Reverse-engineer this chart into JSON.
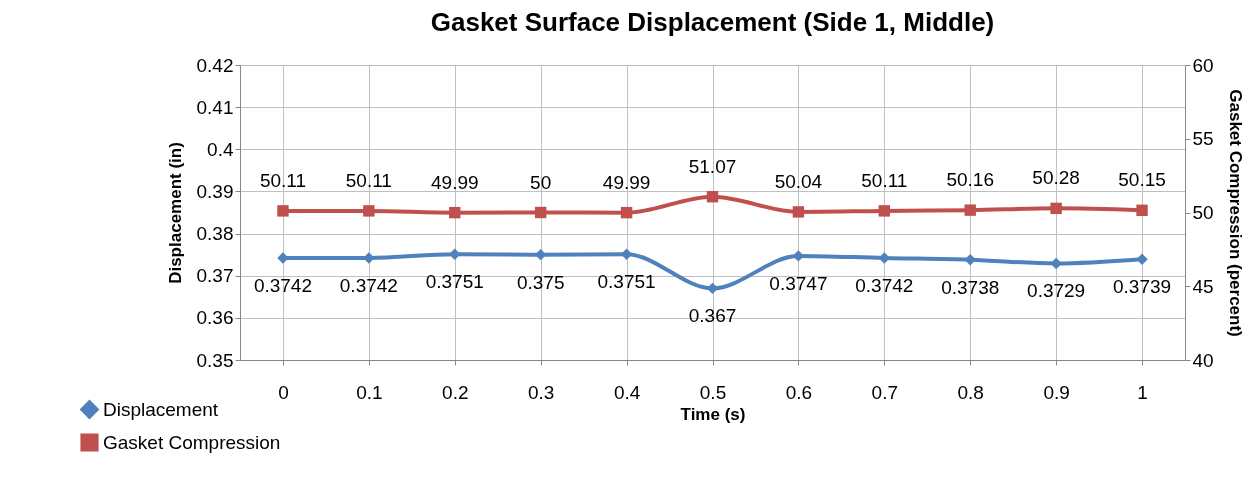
{
  "chart_data": {
    "type": "line",
    "title": "Gasket Surface Displacement (Side 1, Middle)",
    "xlabel": "Time (s)",
    "ylabel": "Displacement (in)",
    "y2label": "Gasket Compression (percent)",
    "categories": [
      "0",
      "0.1",
      "0.2",
      "0.3",
      "0.4",
      "0.5",
      "0.6",
      "0.7",
      "0.8",
      "0.9",
      "1"
    ],
    "series": [
      {
        "name": "Displacement",
        "color": "#4f81bd",
        "marker": "diamond",
        "values": [
          0.3742,
          0.3742,
          0.3751,
          0.375,
          0.3751,
          0.367,
          0.3747,
          0.3742,
          0.3738,
          0.3729,
          0.3739
        ]
      },
      {
        "name": "Gasket Compression",
        "color": "#c0504d",
        "marker": "square",
        "axis": "y2",
        "values": [
          50.11,
          50.11,
          49.99,
          50,
          49.99,
          51.07,
          50.04,
          50.11,
          50.16,
          50.28,
          50.15
        ]
      }
    ],
    "ylim": [
      0.35,
      0.42
    ],
    "yticks": [
      0.35,
      0.36,
      0.37,
      0.38,
      0.39,
      0.4,
      0.41,
      0.42
    ],
    "y2lim": [
      40,
      60
    ],
    "y2ticks": [
      40,
      45,
      50,
      55,
      60
    ],
    "grid": true,
    "legend": "bottom left",
    "data_labels": true
  }
}
